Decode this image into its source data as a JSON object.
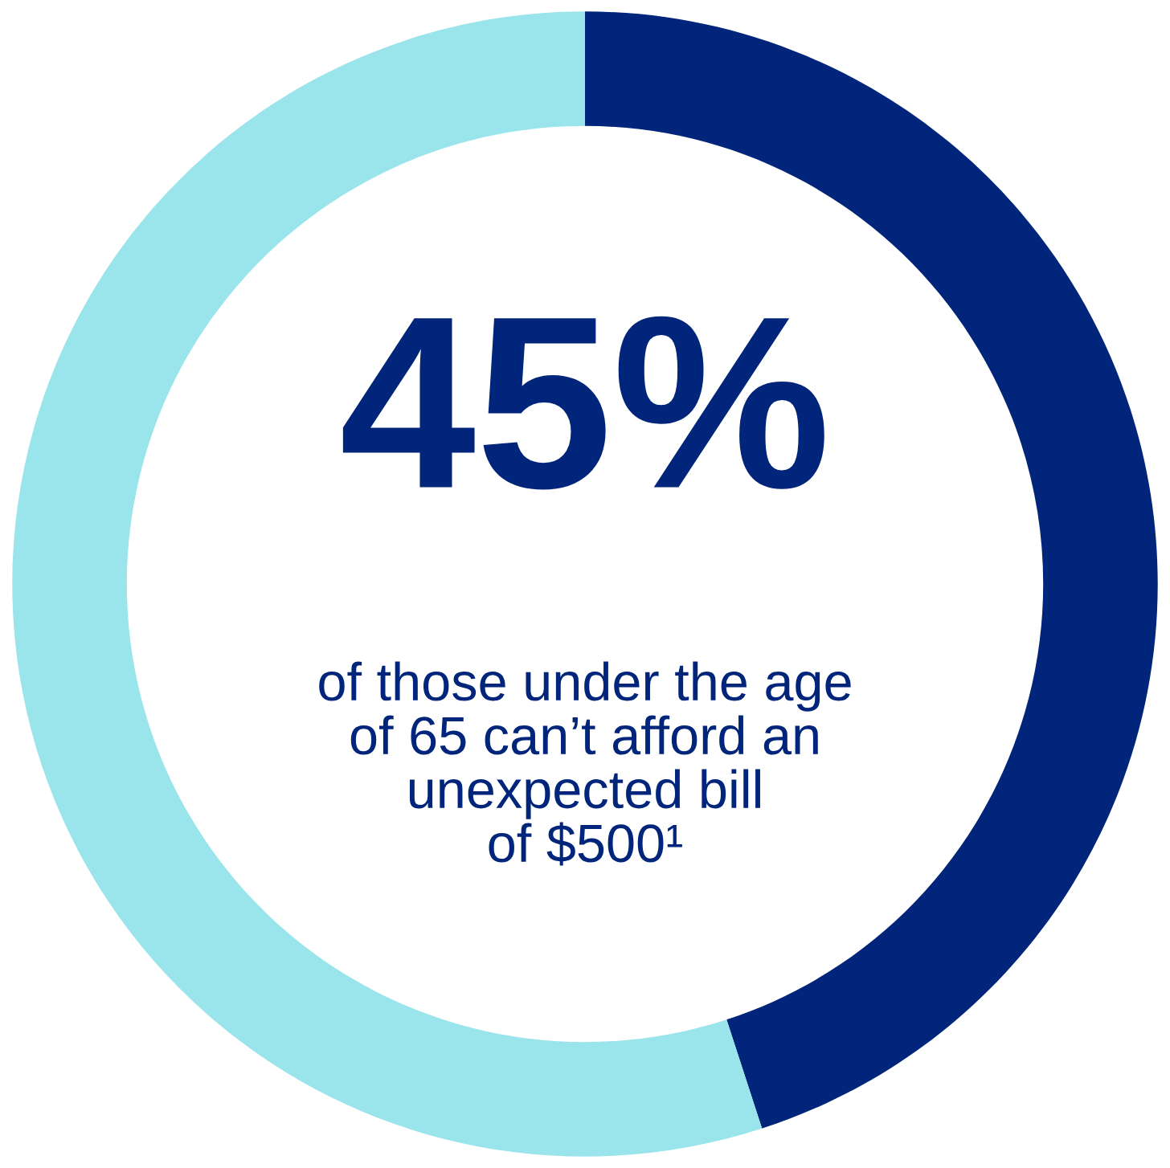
{
  "chart_data": {
    "type": "donut",
    "categories": [
      null,
      null
    ],
    "values": [
      45,
      55
    ],
    "colors": [
      "#00257a",
      "#9ae4ec"
    ],
    "value_labels": [
      "45%",
      null
    ],
    "annotations": [
      "of those under the age\nof 65 can’t afford an\nunexpected bill\nof $500¹"
    ]
  }
}
